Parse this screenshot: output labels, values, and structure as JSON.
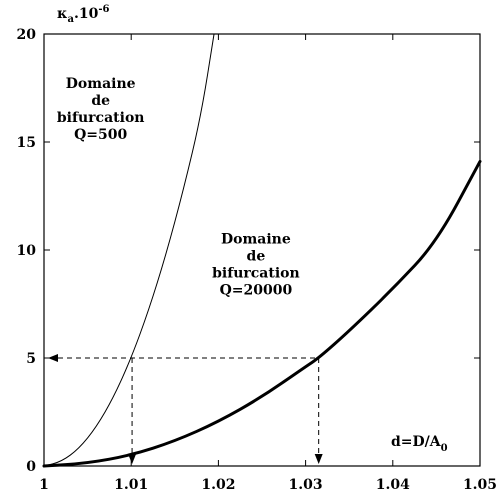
{
  "chart_data": {
    "type": "line",
    "title": "",
    "xlabel": "d=D/A",
    "xlabel_sub": "0",
    "ylabel_parts": [
      "κ",
      "a",
      ".10",
      "-6"
    ],
    "xlim": [
      1.0,
      1.05
    ],
    "ylim": [
      0,
      20
    ],
    "x_ticks": [
      1,
      1.01,
      1.02,
      1.03,
      1.04,
      1.05
    ],
    "x_tick_labels": [
      "1",
      "1.01",
      "1.02",
      "1.03",
      "1.04",
      "1.05"
    ],
    "y_ticks": [
      0,
      5,
      10,
      15,
      20
    ],
    "y_tick_labels": [
      "0",
      "5",
      "10",
      "15",
      "20"
    ],
    "grid": false,
    "series": [
      {
        "name": "Q=500",
        "line_weight": "thin",
        "x": [
          1.0,
          1.002,
          1.004,
          1.006,
          1.008,
          1.01,
          1.012,
          1.014,
          1.016,
          1.018,
          1.0195
        ],
        "y": [
          0,
          0.2,
          0.8,
          1.8,
          3.2,
          5.0,
          7.2,
          9.8,
          12.8,
          16.2,
          20.0
        ]
      },
      {
        "name": "Q=20000",
        "line_weight": "thick",
        "x": [
          1.0,
          1.005,
          1.01,
          1.015,
          1.02,
          1.025,
          1.03,
          1.0315,
          1.035,
          1.04,
          1.045,
          1.05
        ],
        "y": [
          0,
          0.13,
          0.5,
          1.15,
          2.05,
          3.2,
          4.6,
          5.0,
          6.25,
          8.2,
          10.35,
          14.1
        ]
      }
    ],
    "annotations": [
      {
        "lines": [
          "Domaine",
          "de",
          "bifurcation",
          "Q=500"
        ],
        "x": 1.0065,
        "y": 17.5
      },
      {
        "lines": [
          "Domaine",
          "de",
          "bifurcation",
          "Q=20000"
        ],
        "x": 1.0243,
        "y": 10.3
      }
    ],
    "guides": [
      {
        "y": 5,
        "x": 1.0101
      },
      {
        "y": 5,
        "x": 1.0315
      }
    ]
  }
}
